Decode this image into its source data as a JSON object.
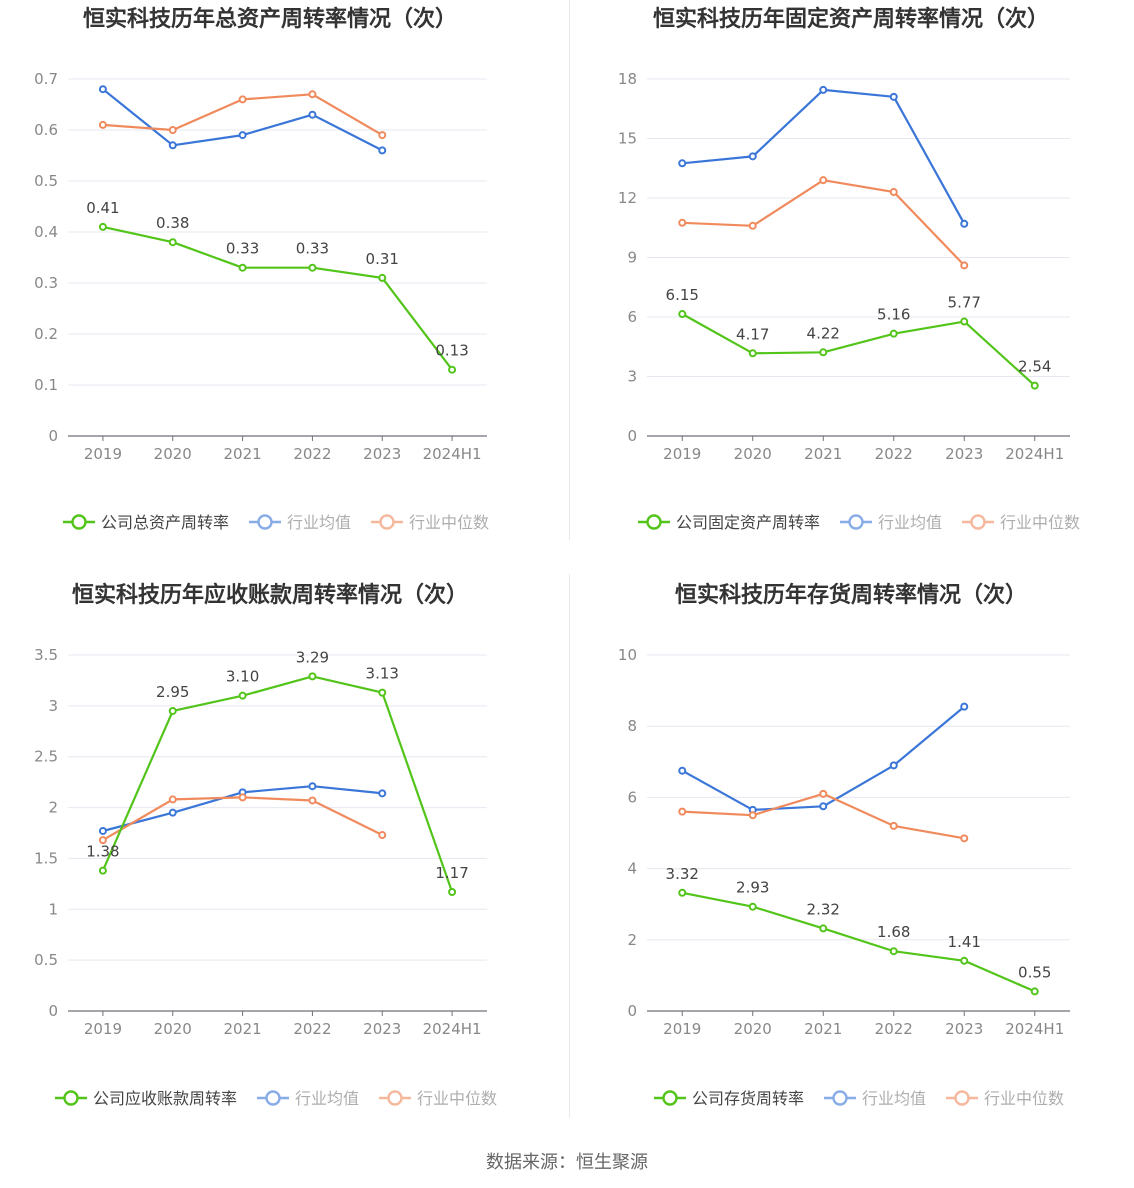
{
  "legend_labels": {
    "avg": "行业均值",
    "median": "行业中位数"
  },
  "colors": {
    "company": "#52c41a",
    "avg": "#3a76d8",
    "median": "#f08a5d",
    "title": "#333333",
    "axis": "#888888",
    "grid": "#e6e8f0",
    "label": "#444444"
  },
  "source_note": "数据来源：恒生聚源",
  "chart_data": [
    {
      "type": "line",
      "title": "恒实科技历年总资产周转率情况（次）",
      "categories": [
        "2019",
        "2020",
        "2021",
        "2022",
        "2023",
        "2024H1"
      ],
      "ylim": [
        0,
        0.7
      ],
      "yticks": [
        "0",
        "0.1",
        "0.2",
        "0.3",
        "0.4",
        "0.5",
        "0.6",
        "0.7"
      ],
      "series": [
        {
          "name": "公司总资产周转率",
          "key": "company",
          "values": [
            0.41,
            0.38,
            0.33,
            0.33,
            0.31,
            0.13
          ],
          "labels": [
            "0.41",
            "0.38",
            "0.33",
            "0.33",
            "0.31",
            "0.13"
          ]
        },
        {
          "name": "行业均值",
          "key": "avg",
          "values": [
            0.68,
            0.57,
            0.59,
            0.63,
            0.56,
            null
          ]
        },
        {
          "name": "行业中位数",
          "key": "median",
          "values": [
            0.61,
            0.6,
            0.66,
            0.67,
            0.59,
            null
          ]
        }
      ]
    },
    {
      "type": "line",
      "title": "恒实科技历年固定资产周转率情况（次）",
      "categories": [
        "2019",
        "2020",
        "2021",
        "2022",
        "2023",
        "2024H1"
      ],
      "ylim": [
        0,
        18
      ],
      "yticks": [
        "0",
        "3",
        "6",
        "9",
        "12",
        "15",
        "18"
      ],
      "series": [
        {
          "name": "公司固定资产周转率",
          "key": "company",
          "values": [
            6.15,
            4.17,
            4.22,
            5.16,
            5.77,
            2.54
          ],
          "labels": [
            "6.15",
            "4.17",
            "4.22",
            "5.16",
            "5.77",
            "2.54"
          ]
        },
        {
          "name": "行业均值",
          "key": "avg",
          "values": [
            13.75,
            14.1,
            17.45,
            17.1,
            10.7,
            null
          ]
        },
        {
          "name": "行业中位数",
          "key": "median",
          "values": [
            10.75,
            10.6,
            12.9,
            12.3,
            8.6,
            null
          ]
        }
      ]
    },
    {
      "type": "line",
      "title": "恒实科技历年应收账款周转率情况（次）",
      "categories": [
        "2019",
        "2020",
        "2021",
        "2022",
        "2023",
        "2024H1"
      ],
      "ylim": [
        0,
        3.5
      ],
      "yticks": [
        "0",
        "0.5",
        "1",
        "1.5",
        "2",
        "2.5",
        "3",
        "3.5"
      ],
      "series": [
        {
          "name": "公司应收账款周转率",
          "key": "company",
          "values": [
            1.38,
            2.95,
            3.1,
            3.29,
            3.13,
            1.17
          ],
          "labels": [
            "1.38",
            "2.95",
            "3.10",
            "3.29",
            "3.13",
            "1.17"
          ]
        },
        {
          "name": "行业均值",
          "key": "avg",
          "values": [
            1.77,
            1.95,
            2.15,
            2.21,
            2.14,
            null
          ]
        },
        {
          "name": "行业中位数",
          "key": "median",
          "values": [
            1.68,
            2.08,
            2.1,
            2.07,
            1.73,
            null
          ]
        }
      ]
    },
    {
      "type": "line",
      "title": "恒实科技历年存货周转率情况（次）",
      "categories": [
        "2019",
        "2020",
        "2021",
        "2022",
        "2023",
        "2024H1"
      ],
      "ylim": [
        0,
        10
      ],
      "yticks": [
        "0",
        "2",
        "4",
        "6",
        "8",
        "10"
      ],
      "series": [
        {
          "name": "公司存货周转率",
          "key": "company",
          "values": [
            3.32,
            2.93,
            2.32,
            1.68,
            1.41,
            0.55
          ],
          "labels": [
            "3.32",
            "2.93",
            "2.32",
            "1.68",
            "1.41",
            "0.55"
          ]
        },
        {
          "name": "行业均值",
          "key": "avg",
          "values": [
            6.75,
            5.65,
            5.75,
            6.9,
            8.55,
            null
          ]
        },
        {
          "name": "行业中位数",
          "key": "median",
          "values": [
            5.6,
            5.5,
            6.1,
            5.2,
            4.85,
            null
          ]
        }
      ]
    }
  ]
}
